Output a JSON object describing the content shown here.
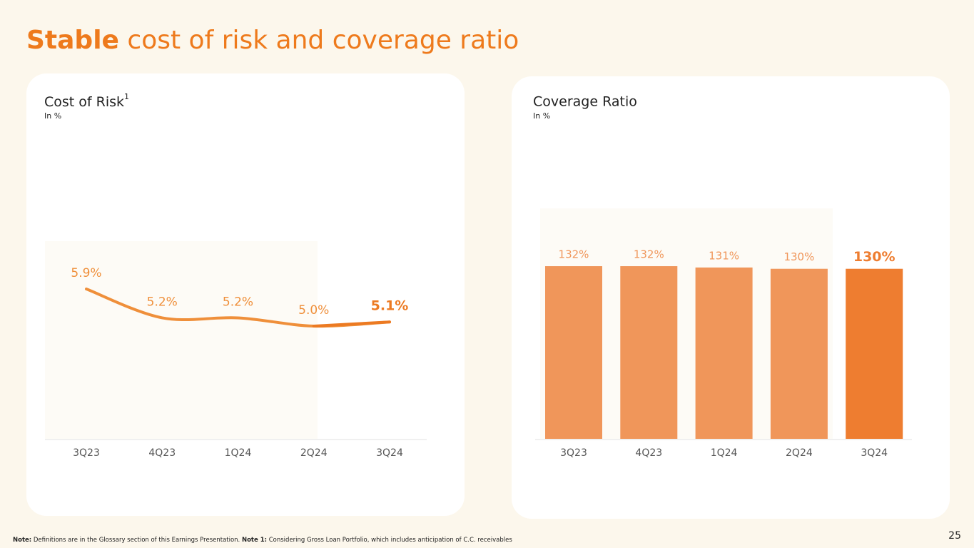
{
  "title_bold": "Stable",
  "title_rest": "cost of risk and coverage ratio",
  "chart_data": [
    {
      "type": "line",
      "title": "Cost of Risk",
      "title_sup": "1",
      "subtitle": "In %",
      "categories": [
        "3Q23",
        "4Q23",
        "1Q24",
        "2Q24",
        "3Q24"
      ],
      "values": [
        5.9,
        5.2,
        5.2,
        5.0,
        5.1
      ],
      "value_labels": [
        "5.9%",
        "5.2%",
        "5.2%",
        "5.0%",
        "5.1%"
      ],
      "color": "#ef8f3a",
      "highlight_color": "#ec7a22"
    },
    {
      "type": "bar",
      "title": "Coverage Ratio",
      "subtitle": "In %",
      "categories": [
        "3Q23",
        "4Q23",
        "1Q24",
        "2Q24",
        "3Q24"
      ],
      "values": [
        132,
        132,
        131,
        130,
        130
      ],
      "value_labels": [
        "132%",
        "132%",
        "131%",
        "130%",
        "130%"
      ],
      "colors": [
        "#f0965a",
        "#f0965a",
        "#f0965a",
        "#f0965a",
        "#ee7d30"
      ]
    }
  ],
  "footnote": {
    "label1": "Note:",
    "text1": "Definitions are in the Glossary section of this Earnings Presentation.",
    "label2": "Note 1:",
    "text2": "Considering Gross Loan Portfolio, which includes anticipation of C.C. receivables"
  },
  "page_number": 25
}
